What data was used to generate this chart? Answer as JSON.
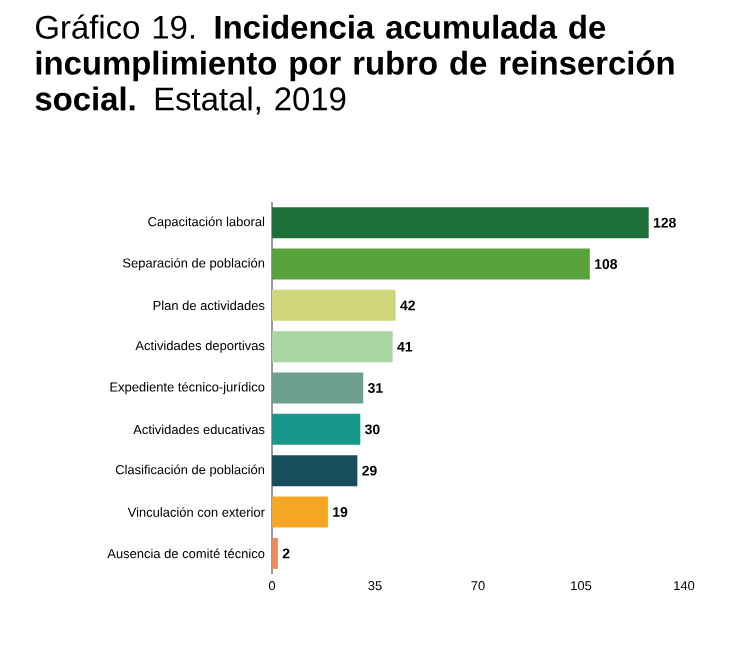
{
  "chart_data": {
    "type": "bar",
    "orientation": "horizontal",
    "title": "Gráfico 19. **Incidencia acumulada de incumplimiento por rubro de reinserción social.** Estatal, 2019",
    "categories": [
      "Capacitación laboral",
      "Separación de población",
      "Plan de actividades",
      "Actividades deportivas",
      "Expediente técnico-jurídico",
      "Actividades educativas",
      "Clasificación de población",
      "Vinculación con exterior",
      "Ausencia de comité técnico"
    ],
    "values": [
      128,
      108,
      42,
      41,
      31,
      30,
      29,
      19,
      2
    ],
    "colors": [
      "#1e6e3a",
      "#5aa33c",
      "#cfd67a",
      "#a8d5a0",
      "#6fa08e",
      "#16988a",
      "#174d5c",
      "#f5a623",
      "#f08a5a"
    ],
    "xlim": [
      0,
      140
    ],
    "xticks": [
      0,
      35,
      70,
      105,
      140
    ],
    "data_labels": true
  }
}
